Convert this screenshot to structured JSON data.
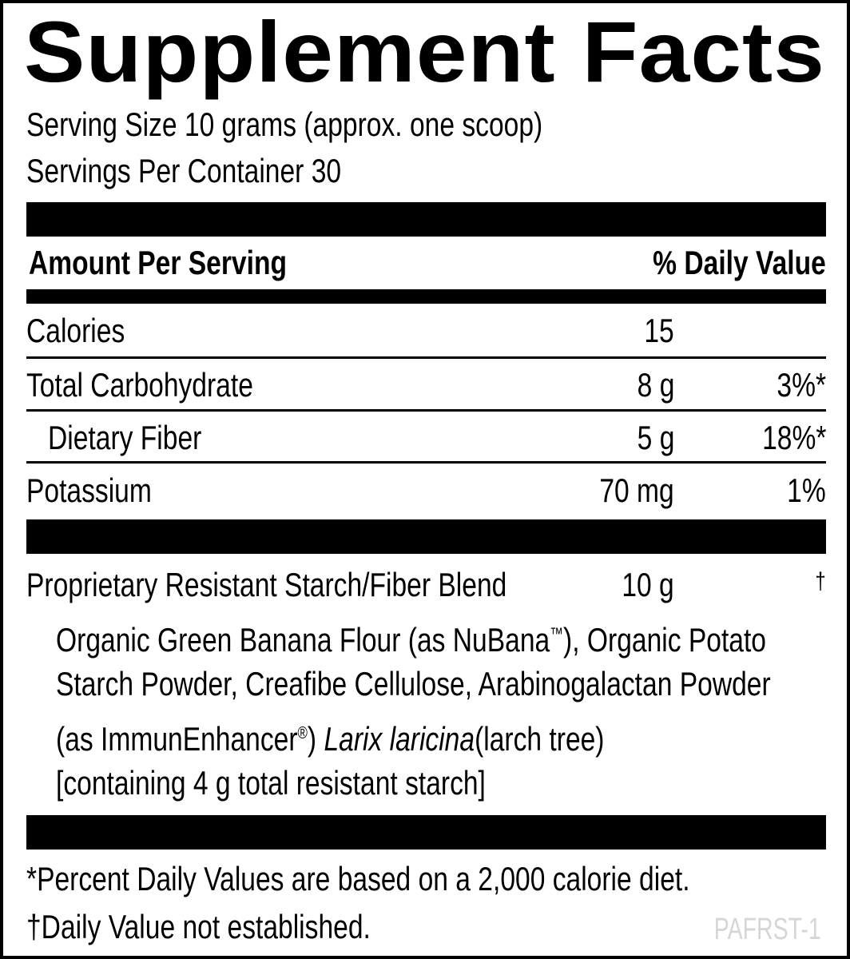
{
  "title": "Supplement Facts",
  "serving_size": "Serving Size 10 grams (approx. one scoop)",
  "servings_per_container": "Servings Per Container 30",
  "header": {
    "amount": "Amount Per Serving",
    "dv": "% Daily Value"
  },
  "rows": [
    {
      "name": "Calories",
      "amount": "15",
      "dv": ""
    },
    {
      "name": "Total Carbohydrate",
      "amount": "8 g",
      "dv": "3%*"
    },
    {
      "name": "Dietary Fiber",
      "amount": "5 g",
      "dv": "18%*"
    },
    {
      "name": "Potassium",
      "amount": "70 mg",
      "dv": "1%"
    }
  ],
  "blend": {
    "name": "Proprietary Resistant Starch/Fiber Blend",
    "amount": "10 g",
    "dv": "†",
    "line1a": "Organic Green Banana Flour (as NuBana",
    "tm": "™",
    "line1b": "), Organic Potato",
    "line2": "Starch Powder, Creafibe Cellulose, Arabinogalactan Powder",
    "line3a": "(as ImmunEnhancer",
    "reg": "®",
    "line3b": ") ",
    "latin": "Larix laricina",
    "line3c": "(larch tree)",
    "line4": "[containing 4 g total resistant starch]"
  },
  "footnotes": [
    "*Percent Daily Values are based on a 2,000 calorie diet.",
    "†Daily Value not established."
  ],
  "code": "PAFRST-1"
}
